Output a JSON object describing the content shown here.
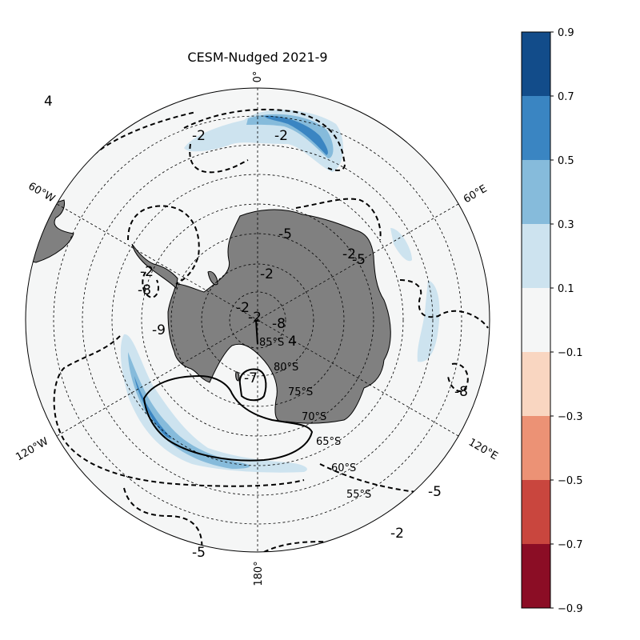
{
  "title": "CESM-Nudged 2021-9",
  "meridian_labels": {
    "top": "0°",
    "bottom": "180°",
    "ur": "60°E",
    "lr": "120°E",
    "ul": "60°W",
    "ll": "120°W"
  },
  "latitude_labels": [
    "85°S",
    "80°S",
    "75°S",
    "70°S",
    "65°S",
    "60°S",
    "55°S"
  ],
  "contour_labels": [
    "-2",
    "-2",
    "-5",
    "-2",
    "-2",
    "-2",
    "-2",
    "4",
    "-7",
    "-8",
    "-5",
    "-2",
    "4",
    "-5",
    "-2",
    "-8",
    "-9",
    "-8",
    "-5"
  ],
  "colorbar": {
    "ticks": [
      "0.9",
      "0.7",
      "0.5",
      "0.3",
      "0.1",
      "−0.1",
      "−0.3",
      "−0.5",
      "−0.7",
      "−0.9"
    ],
    "colors": [
      "#124c8a",
      "#3a85c2",
      "#86bbdb",
      "#cde3ef",
      "#f5f6f6",
      "#f9d6c1",
      "#ec9275",
      "#c9463e",
      "#8b0d25"
    ]
  },
  "colors": {
    "ocean": "#f5f6f6",
    "land": "#808080",
    "positive_fill_light": "#cde3ef",
    "positive_fill_mid": "#86bbdb",
    "positive_fill_dark": "#3a85c2"
  }
}
